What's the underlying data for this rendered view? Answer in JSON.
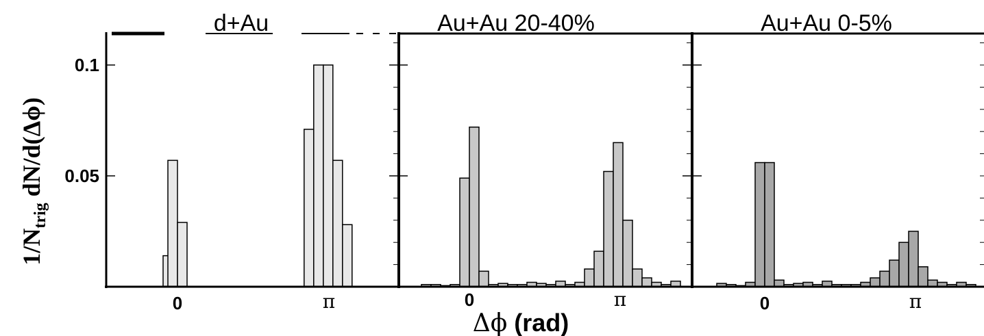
{
  "chart_data": [
    {
      "type": "bar",
      "title": "d+Au",
      "fill": "#e8e8e8",
      "ylim": [
        0,
        0.11
      ],
      "bins": [
        {
          "x": -0.3,
          "y": 0.0
        },
        {
          "x": -0.2,
          "y": 0.014
        },
        {
          "x": -0.1,
          "y": 0.057
        },
        {
          "x": 0.1,
          "y": 0.029
        },
        {
          "x": 2.74,
          "y": 0.071
        },
        {
          "x": 2.94,
          "y": 0.1
        },
        {
          "x": 3.14,
          "y": 0.1
        },
        {
          "x": 3.34,
          "y": 0.057
        },
        {
          "x": 3.54,
          "y": 0.028
        }
      ]
    },
    {
      "type": "bar",
      "title": "Au+Au 20-40%",
      "fill": "#c8c8c8",
      "ylim": [
        0,
        0.11
      ],
      "bins": [
        {
          "x": -0.9,
          "y": 0.001
        },
        {
          "x": -0.7,
          "y": 0.001
        },
        {
          "x": -0.5,
          "y": 0.0005
        },
        {
          "x": -0.3,
          "y": 0.001
        },
        {
          "x": -0.1,
          "y": 0.049
        },
        {
          "x": 0.1,
          "y": 0.072
        },
        {
          "x": 0.3,
          "y": 0.007
        },
        {
          "x": 0.5,
          "y": 0.001
        },
        {
          "x": 0.7,
          "y": 0.0015
        },
        {
          "x": 0.9,
          "y": 0.001
        },
        {
          "x": 1.1,
          "y": 0.001
        },
        {
          "x": 1.3,
          "y": 0.002
        },
        {
          "x": 1.5,
          "y": 0.0015
        },
        {
          "x": 1.7,
          "y": 0.001
        },
        {
          "x": 1.9,
          "y": 0.0025
        },
        {
          "x": 2.1,
          "y": 0.001
        },
        {
          "x": 2.3,
          "y": 0.002
        },
        {
          "x": 2.5,
          "y": 0.008
        },
        {
          "x": 2.7,
          "y": 0.016
        },
        {
          "x": 2.9,
          "y": 0.052
        },
        {
          "x": 3.1,
          "y": 0.065
        },
        {
          "x": 3.3,
          "y": 0.03
        },
        {
          "x": 3.5,
          "y": 0.008
        },
        {
          "x": 3.7,
          "y": 0.004
        },
        {
          "x": 3.9,
          "y": 0.002
        },
        {
          "x": 4.1,
          "y": 0.001
        },
        {
          "x": 4.3,
          "y": 0.0025
        }
      ]
    },
    {
      "type": "bar",
      "title": "Au+Au 0-5%",
      "fill": "#a8a8a8",
      "ylim": [
        0,
        0.11
      ],
      "bins": [
        {
          "x": -0.9,
          "y": 0.0015
        },
        {
          "x": -0.7,
          "y": 0.001
        },
        {
          "x": -0.5,
          "y": 0.0005
        },
        {
          "x": -0.3,
          "y": 0.002
        },
        {
          "x": -0.1,
          "y": 0.056
        },
        {
          "x": 0.1,
          "y": 0.056
        },
        {
          "x": 0.3,
          "y": 0.003
        },
        {
          "x": 0.5,
          "y": 0.001
        },
        {
          "x": 0.7,
          "y": 0.0015
        },
        {
          "x": 0.9,
          "y": 0.002
        },
        {
          "x": 1.1,
          "y": 0.001
        },
        {
          "x": 1.3,
          "y": 0.0025
        },
        {
          "x": 1.5,
          "y": 0.001
        },
        {
          "x": 1.7,
          "y": 0.001
        },
        {
          "x": 1.9,
          "y": 0.001
        },
        {
          "x": 2.1,
          "y": 0.002
        },
        {
          "x": 2.3,
          "y": 0.004
        },
        {
          "x": 2.5,
          "y": 0.007
        },
        {
          "x": 2.7,
          "y": 0.012
        },
        {
          "x": 2.9,
          "y": 0.02
        },
        {
          "x": 3.1,
          "y": 0.025
        },
        {
          "x": 3.3,
          "y": 0.009
        },
        {
          "x": 3.5,
          "y": 0.003
        },
        {
          "x": 3.7,
          "y": 0.002
        },
        {
          "x": 3.9,
          "y": 0.001
        },
        {
          "x": 4.1,
          "y": 0.002
        },
        {
          "x": 4.3,
          "y": 0.001
        }
      ]
    }
  ],
  "axes": {
    "x_ticks": [
      "0",
      "π"
    ],
    "x_tick_values": [
      0,
      3.14159
    ],
    "y_ticks": [
      "0.1",
      "0.05"
    ],
    "y_tick_values": [
      0.1,
      0.05
    ],
    "xlabel": {
      "symbol": "Δϕ",
      "text": " (rad)"
    },
    "ylabel": {
      "prefix": "1/N",
      "sub": "trig",
      "suffix": " dN/d(Δϕ)"
    }
  }
}
